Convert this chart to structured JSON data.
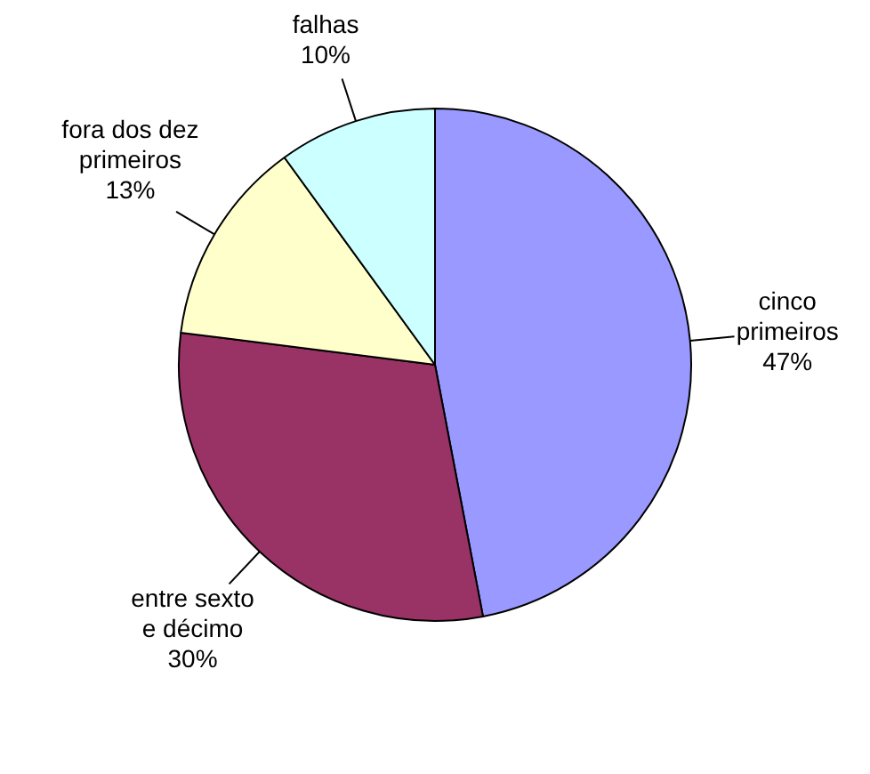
{
  "chart_data": {
    "type": "pie",
    "categories": [
      "cinco primeiros",
      "entre sexto e décimo",
      "fora dos dez primeiros",
      "falhas"
    ],
    "values": [
      47,
      30,
      13,
      10
    ],
    "colors": [
      "#9999ff",
      "#993366",
      "#ffffcc",
      "#ccffff"
    ],
    "value_labels": [
      "47%",
      "30%",
      "13%",
      "10%"
    ],
    "legend": false
  }
}
